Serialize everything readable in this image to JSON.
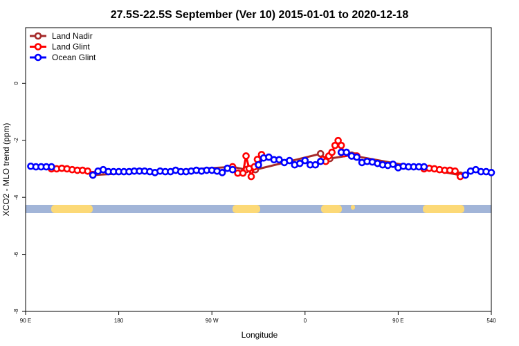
{
  "chart_data": {
    "type": "line",
    "title": "27.5S-22.5S September (Ver 10)   2015-01-01 to 2020-12-18",
    "x_label": "Longitude",
    "y_label": "XCO2 - MLO trend (ppm)",
    "xlim": [
      90,
      540
    ],
    "xticks": [
      {
        "value": 90,
        "label": "90 E"
      },
      180,
      {
        "value": 270,
        "label": "90 W"
      },
      {
        "value": 360,
        "label": "0"
      },
      {
        "value": 450,
        "label": "90 E"
      },
      540
    ],
    "ylim": [
      -8,
      1.95
    ],
    "yticks": [
      0,
      -2,
      -4,
      -6,
      -8
    ],
    "legend": "top-left",
    "series": [
      {
        "name": "Land Nadir",
        "color": "#a52a2a",
        "x": [
          155,
          290,
          303,
          312,
          375,
          380,
          384,
          405,
          408,
          510
        ],
        "values": [
          -3.22,
          -2.93,
          -3.03,
          -3.03,
          -2.47,
          -2.67,
          -2.64,
          -2.52,
          -2.55,
          -3.22
        ]
      },
      {
        "name": "Land Glint",
        "color": "#ff0000",
        "x": [
          115,
          120,
          125,
          130,
          135,
          140,
          145,
          150,
          155,
          null,
          290,
          295,
          300,
          303,
          306,
          308,
          311,
          314,
          318,
          null,
          377,
          380,
          383,
          386,
          389,
          392,
          395,
          398,
          405,
          410,
          null,
          475,
          480,
          485,
          490,
          495,
          500,
          505,
          510
        ],
        "values": [
          -3.0,
          -3.0,
          -2.98,
          -3.0,
          -3.03,
          -3.05,
          -3.05,
          -3.08,
          -3.2,
          null,
          -2.93,
          -3.15,
          -3.15,
          -2.55,
          -2.99,
          -3.27,
          -2.93,
          -2.67,
          -2.5,
          null,
          -2.67,
          -2.74,
          -2.55,
          -2.42,
          -2.18,
          -2.01,
          -2.18,
          -2.47,
          -2.55,
          -2.55,
          null,
          -3.0,
          -2.98,
          -3.0,
          -3.03,
          -3.05,
          -3.05,
          -3.08,
          -3.27
        ]
      },
      {
        "name": "Ocean Glint",
        "color": "#0000ff",
        "x": [
          95,
          100,
          105,
          110,
          115,
          null,
          155,
          160,
          165,
          170,
          175,
          180,
          185,
          190,
          195,
          200,
          205,
          210,
          215,
          220,
          225,
          230,
          235,
          240,
          245,
          250,
          255,
          260,
          265,
          270,
          275,
          280,
          285,
          290,
          null,
          315,
          320,
          325,
          330,
          335,
          340,
          345,
          350,
          355,
          360,
          365,
          370,
          375,
          null,
          395,
          400,
          405,
          410,
          415,
          420,
          425,
          430,
          435,
          440,
          445,
          450,
          455,
          460,
          465,
          470,
          475,
          null,
          515,
          520,
          525,
          530,
          535,
          540
        ],
        "values": [
          -2.91,
          -2.93,
          -2.93,
          -2.93,
          -2.93,
          null,
          -3.22,
          -3.08,
          -3.03,
          -3.1,
          -3.1,
          -3.1,
          -3.1,
          -3.1,
          -3.08,
          -3.08,
          -3.08,
          -3.1,
          -3.13,
          -3.08,
          -3.1,
          -3.1,
          -3.05,
          -3.1,
          -3.1,
          -3.08,
          -3.05,
          -3.08,
          -3.05,
          -3.05,
          -3.08,
          -3.13,
          -2.98,
          -3.03,
          null,
          -2.86,
          -2.62,
          -2.59,
          -2.68,
          -2.68,
          -2.78,
          -2.71,
          -2.86,
          -2.81,
          -2.71,
          -2.86,
          -2.86,
          -2.74,
          null,
          -2.42,
          -2.42,
          -2.55,
          -2.59,
          -2.78,
          -2.74,
          -2.76,
          -2.81,
          -2.86,
          -2.88,
          -2.84,
          -2.96,
          -2.91,
          -2.93,
          -2.93,
          -2.93,
          -2.93,
          null,
          -3.22,
          -3.08,
          -3.03,
          -3.1,
          -3.1,
          -3.13
        ]
      }
    ]
  }
}
